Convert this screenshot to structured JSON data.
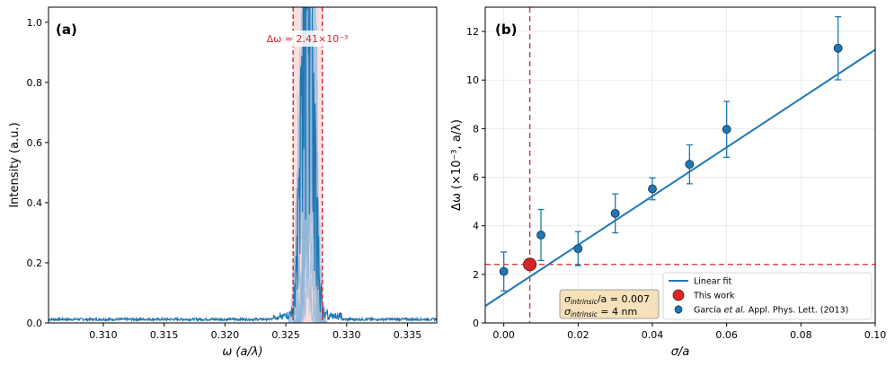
{
  "chart_data": [
    {
      "type": "line",
      "panel_label": "(a)",
      "xlabel": "ω (a/λ)",
      "ylabel": "Intensity (a.u.)",
      "xlim": [
        0.3055,
        0.3374
      ],
      "ylim": [
        0,
        1.05
      ],
      "xticks": [
        "0.310",
        "0.315",
        "0.320",
        "0.325",
        "0.330",
        "0.335"
      ],
      "xtick_values": [
        0.31,
        0.315,
        0.32,
        0.325,
        0.33,
        0.335
      ],
      "yticks": [
        "0.0",
        "0.2",
        "0.4",
        "0.6",
        "0.8",
        "1.0"
      ],
      "ytick_values": [
        0.0,
        0.2,
        0.4,
        0.6,
        0.8,
        1.0
      ],
      "annotation": "Δω = 2.41×10⁻³",
      "band": [
        0.3256,
        0.328
      ],
      "peak_center": 0.3268,
      "baseline": 0.012,
      "colors": {
        "line": "#1f77b4",
        "band": "#d62728"
      },
      "grid": false
    },
    {
      "type": "scatter",
      "panel_label": "(b)",
      "xlabel": "σ/a",
      "ylabel": "Δω (×10⁻³, a/λ)",
      "xlim": [
        -0.005,
        0.1
      ],
      "ylim": [
        0,
        13
      ],
      "xticks": [
        "0.00",
        "0.02",
        "0.04",
        "0.06",
        "0.08",
        "0.10"
      ],
      "xtick_values": [
        0.0,
        0.02,
        0.04,
        0.06,
        0.08,
        0.1
      ],
      "yticks": [
        "0",
        "2",
        "4",
        "6",
        "8",
        "10",
        "12"
      ],
      "ytick_values": [
        0,
        2,
        4,
        6,
        8,
        10,
        12
      ],
      "grid": true,
      "legend_position": "lower-right",
      "series": [
        {
          "name": "García et al. Appl. Phys. Lett. (2013)",
          "x": [
            0.0,
            0.01,
            0.02,
            0.03,
            0.04,
            0.05,
            0.06,
            0.09
          ],
          "y": [
            2.12,
            3.62,
            3.06,
            4.51,
            5.52,
            6.53,
            7.97,
            11.31
          ],
          "yerr": [
            0.8,
            1.05,
            0.7,
            0.8,
            0.45,
            0.8,
            1.15,
            1.3
          ]
        },
        {
          "name": "This work",
          "x": [
            0.007
          ],
          "y": [
            2.41
          ]
        },
        {
          "name": "Linear fit",
          "slope": 100.5,
          "intercept": 1.2
        }
      ],
      "crosshair": {
        "x": 0.007,
        "y": 2.41
      },
      "textbox": [
        "σintrinsic/a = 0.007",
        "σintrinsic = 4 nm"
      ],
      "colors": {
        "points": "#1f77b4",
        "this_work": "#d62728",
        "fit": "#1f77b4",
        "guide": "#d62728"
      }
    }
  ],
  "legend": {
    "fit_label": "Linear fit",
    "this_label": "This work",
    "ref_prefix": "García ",
    "ref_italic": "et al.",
    "ref_suffix": " Appl. Phys. Lett. (2013)"
  },
  "textbox": {
    "line1_sym": "σ",
    "line1_sub": "intrinsic",
    "line1_tail": "/a = 0.007",
    "line2_sym": "σ",
    "line2_sub": "intrinsic",
    "line2_tail": " = 4 nm"
  }
}
